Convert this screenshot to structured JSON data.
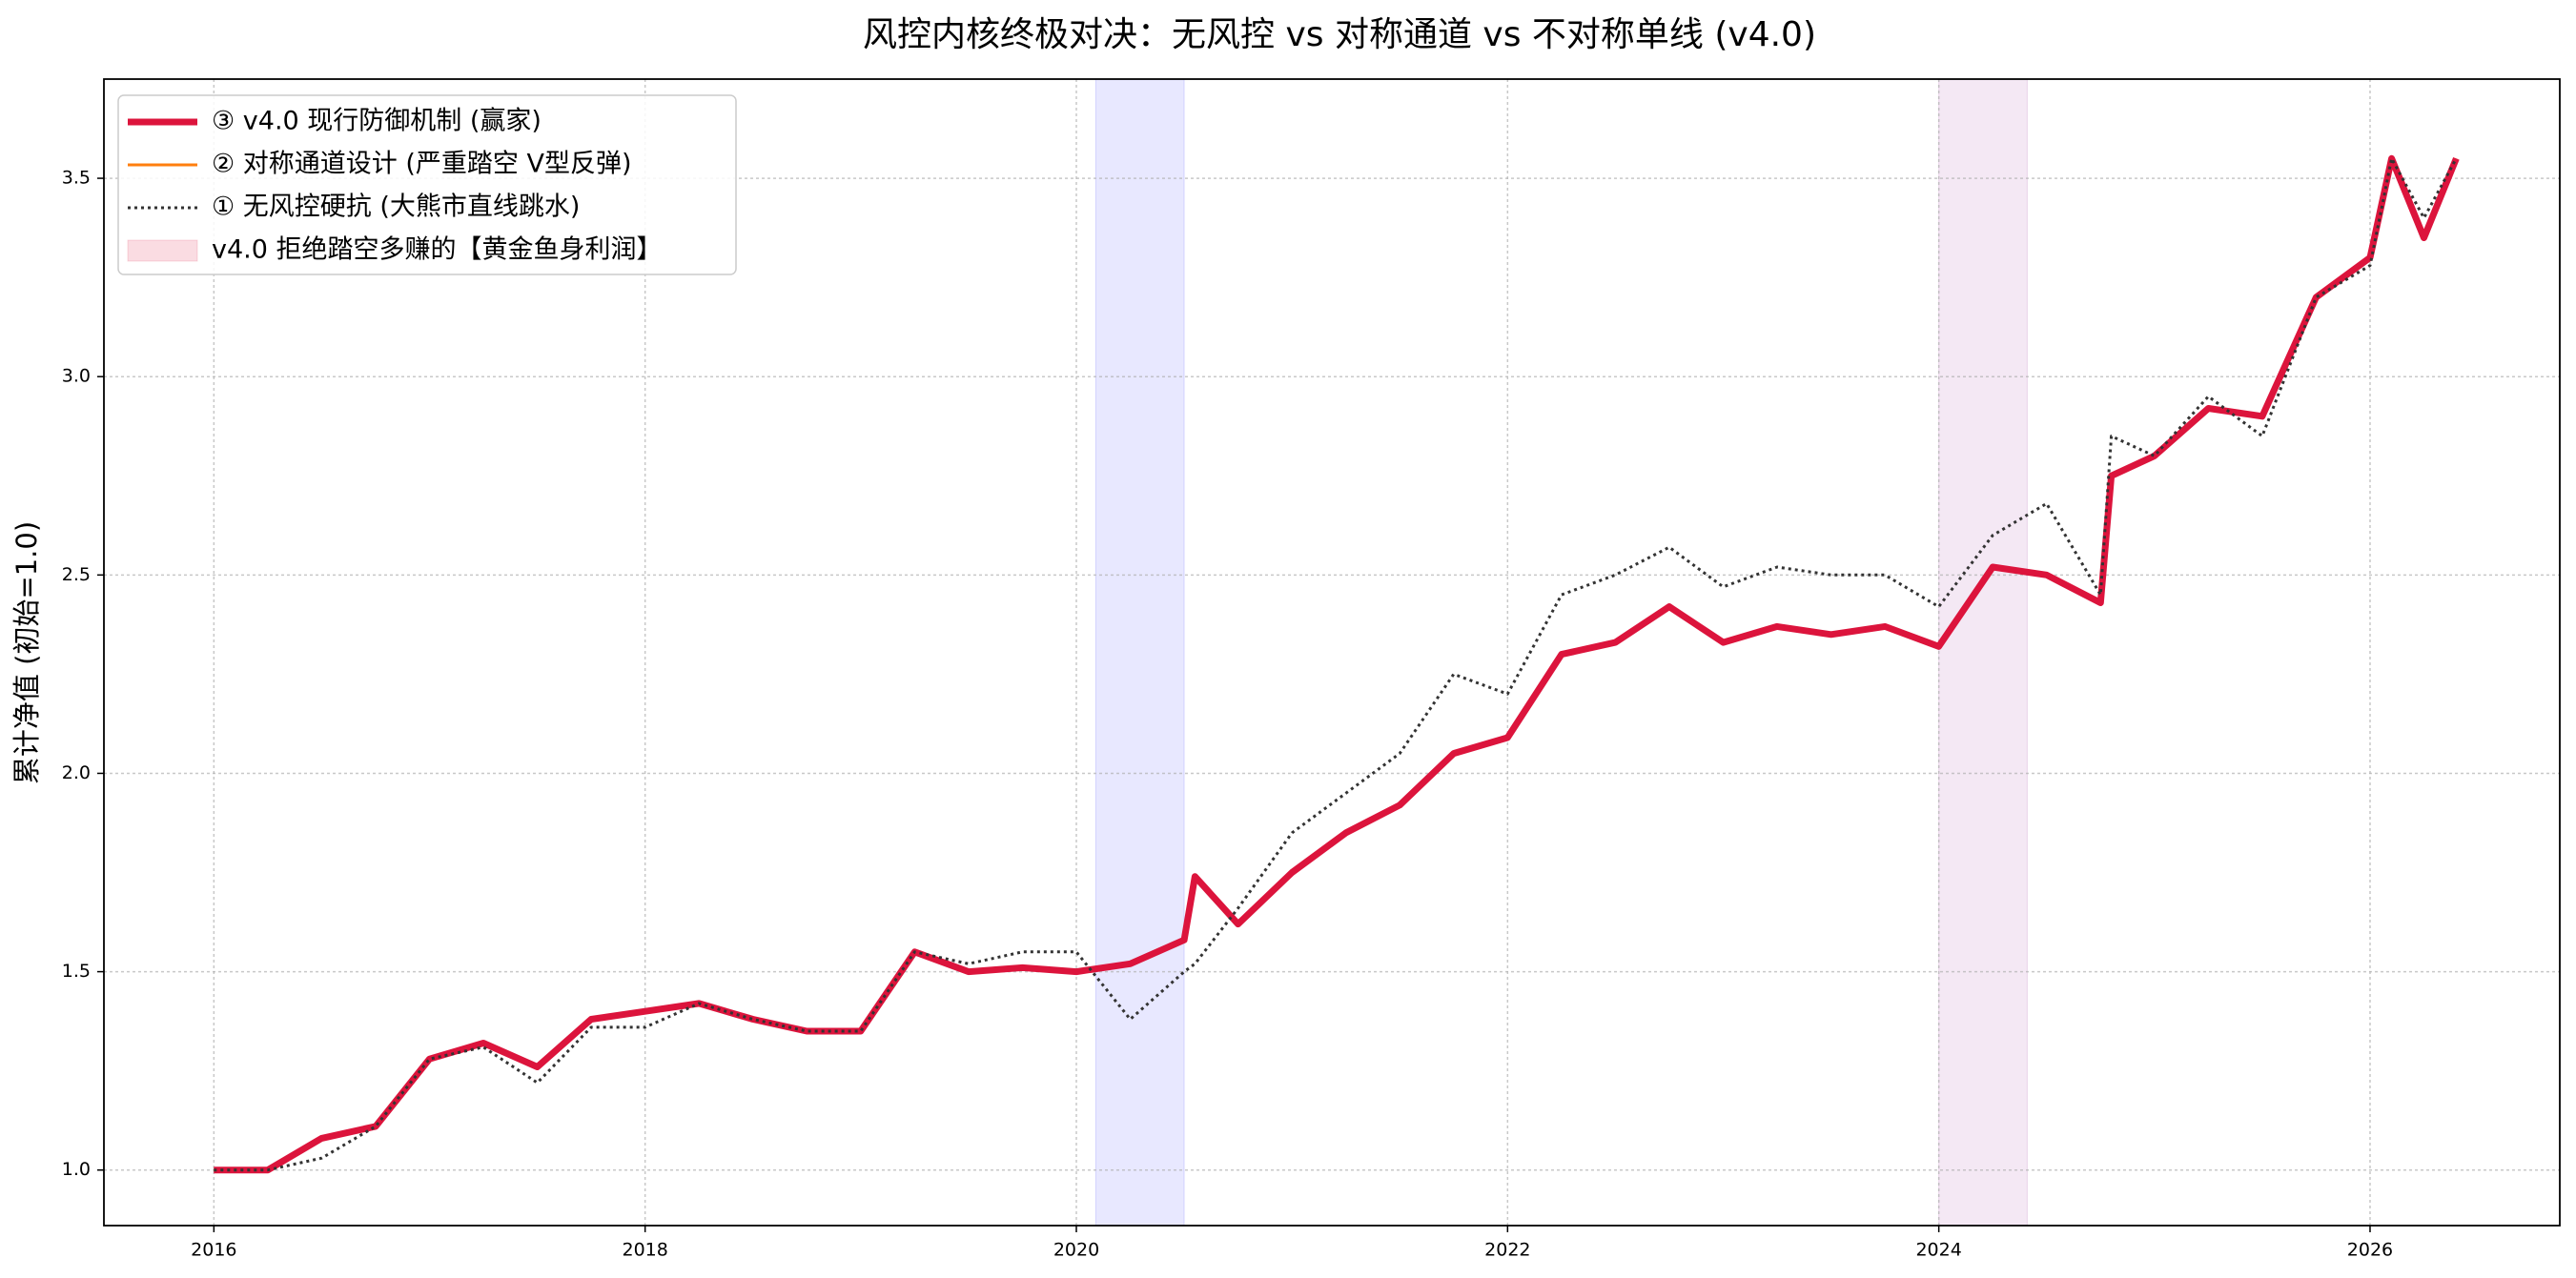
{
  "chart_data": {
    "type": "line",
    "title": "风控内核终极对决：无风控 vs 对称通道 vs 不对称单线 (v4.0)",
    "y_label": "累计净值 (初始=1.0)",
    "x": [
      2016,
      2016.25,
      2016.5,
      2016.75,
      2017,
      2017.25,
      2017.5,
      2017.75,
      2018,
      2018.25,
      2018.5,
      2018.75,
      2019,
      2019.25,
      2019.5,
      2019.75,
      2020,
      2020.25,
      2020.5,
      2020.55,
      2020.75,
      2021,
      2021.25,
      2021.5,
      2021.75,
      2022,
      2022.25,
      2022.5,
      2022.75,
      2023,
      2023.25,
      2023.5,
      2023.75,
      2024,
      2024.25,
      2024.5,
      2024.75,
      2024.8,
      2025,
      2025.25,
      2025.5,
      2025.75,
      2026,
      2026.1,
      2026.25,
      2026.4
    ],
    "series": [
      {
        "name": "③ v4.0 现行防御机制 (赢家)",
        "color": "#dc143c",
        "width": 7,
        "dash": "solid",
        "values": [
          1.0,
          1.0,
          1.08,
          1.11,
          1.28,
          1.32,
          1.26,
          1.38,
          1.4,
          1.42,
          1.38,
          1.35,
          1.35,
          1.55,
          1.5,
          1.51,
          1.5,
          1.52,
          1.58,
          1.74,
          1.62,
          1.75,
          1.85,
          1.92,
          2.05,
          2.09,
          2.3,
          2.33,
          2.42,
          2.33,
          2.37,
          2.35,
          2.37,
          2.32,
          2.52,
          2.5,
          2.43,
          2.75,
          2.8,
          2.92,
          2.9,
          3.2,
          3.3,
          3.55,
          3.35,
          3.55
        ]
      },
      {
        "name": "② 对称通道设计 (严重踏空 V型反弹)",
        "color": "#ff7f0e",
        "width": 3,
        "dash": "solid",
        "values": [
          1.0,
          1.0,
          1.08,
          1.11,
          1.28,
          1.32,
          1.26,
          1.38,
          1.4,
          1.42,
          1.38,
          1.35,
          1.35,
          1.55,
          1.5,
          1.51,
          1.5,
          1.52,
          1.58,
          1.74,
          1.62,
          1.75,
          1.85,
          1.92,
          2.05,
          2.09,
          2.3,
          2.33,
          2.42,
          2.33,
          2.37,
          2.35,
          2.37,
          2.32,
          2.52,
          2.5,
          2.43,
          2.75,
          2.8,
          2.92,
          2.9,
          3.2,
          3.3,
          3.55,
          3.35,
          3.55
        ]
      },
      {
        "name": "① 无风控硬抗 (大熊市直线跳水)",
        "color": "#333333",
        "width": 3,
        "dash": "dotted",
        "values": [
          1.0,
          1.0,
          1.03,
          1.11,
          1.28,
          1.31,
          1.22,
          1.36,
          1.36,
          1.42,
          1.38,
          1.35,
          1.35,
          1.55,
          1.52,
          1.55,
          1.55,
          1.38,
          1.5,
          1.52,
          1.66,
          1.85,
          1.95,
          2.05,
          2.25,
          2.2,
          2.45,
          2.5,
          2.57,
          2.47,
          2.52,
          2.5,
          2.5,
          2.42,
          2.6,
          2.68,
          2.45,
          2.85,
          2.8,
          2.95,
          2.85,
          3.2,
          3.28,
          3.55,
          3.4,
          3.55
        ]
      }
    ],
    "spans": [
      {
        "xlim": [
          2020.09,
          2020.5
        ],
        "color": "#0000ff",
        "alpha": 0.09
      },
      {
        "xlim": [
          2024.0,
          2024.41
        ],
        "color": "#800080",
        "alpha": 0.09
      }
    ],
    "span_legend": {
      "name": "v4.0 拒绝踏空多赚的【黄金鱼身利润】",
      "color": "#dc143c",
      "alpha": 0.15
    },
    "xlim": [
      2015.49,
      2026.88
    ],
    "xticks": [
      2016,
      2018,
      2020,
      2022,
      2024,
      2026
    ],
    "ylim": [
      0.86,
      3.75
    ],
    "yticks": [
      {
        "value": 1.0,
        "label": "1.0"
      },
      {
        "value": 1.5,
        "label": "1.5"
      },
      {
        "value": 2.0,
        "label": "2.0"
      },
      {
        "value": 2.5,
        "label": "2.5"
      },
      {
        "value": 3.0,
        "label": "3.0"
      },
      {
        "value": 3.5,
        "label": "3.5"
      }
    ],
    "grid": true,
    "legend": "upper left"
  }
}
